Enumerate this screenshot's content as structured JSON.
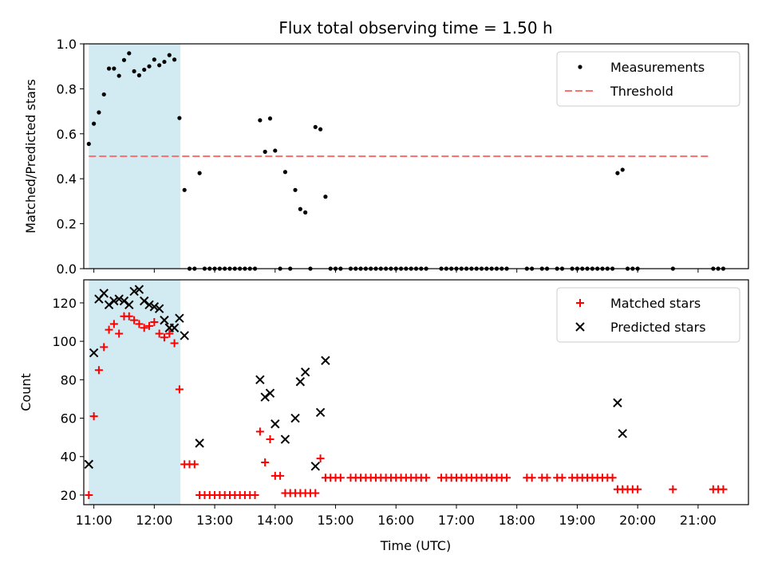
{
  "figure": {
    "title": "Flux total observing time = 1.50 h",
    "xlabel": "Time (UTC)"
  },
  "chart_data": [
    {
      "type": "scatter",
      "ylabel": "Matched/Predicted stars",
      "xlim": [
        "10:50",
        "21:50"
      ],
      "ylim": [
        0,
        1.0
      ],
      "yticks": [
        0,
        0.2,
        0.4,
        0.6,
        0.8,
        1.0
      ],
      "ytick_labels": [
        "0.0",
        "0.2",
        "0.4",
        "0.6",
        "0.8",
        "1.0"
      ],
      "highlight_span": {
        "from": "10:55",
        "to": "12:26",
        "color": "#add8e6"
      },
      "threshold": {
        "name": "Threshold",
        "value": 0.5,
        "from": "10:55",
        "to": "21:10",
        "color": "#ff7070",
        "style": "dashed"
      },
      "legend": {
        "placement": "top-right",
        "entries": [
          "Measurements",
          "Threshold"
        ]
      },
      "series": [
        {
          "name": "Measurements",
          "marker": "dot",
          "color": "#000000",
          "points": [
            [
              "10:55",
              0.555
            ],
            [
              "11:00",
              0.645
            ],
            [
              "11:05",
              0.695
            ],
            [
              "11:10",
              0.775
            ],
            [
              "11:15",
              0.89
            ],
            [
              "11:20",
              0.89
            ],
            [
              "11:25",
              0.858
            ],
            [
              "11:30",
              0.928
            ],
            [
              "11:35",
              0.958
            ],
            [
              "11:40",
              0.878
            ],
            [
              "11:45",
              0.86
            ],
            [
              "11:50",
              0.885
            ],
            [
              "11:55",
              0.9
            ],
            [
              "12:00",
              0.93
            ],
            [
              "12:05",
              0.905
            ],
            [
              "12:10",
              0.92
            ],
            [
              "12:15",
              0.95
            ],
            [
              "12:20",
              0.93
            ],
            [
              "12:25",
              0.67
            ],
            [
              "12:30",
              0.35
            ],
            [
              "12:35",
              0
            ],
            [
              "12:40",
              0
            ],
            [
              "12:45",
              0.425
            ],
            [
              "12:50",
              0
            ],
            [
              "12:55",
              0
            ],
            [
              "13:00",
              0
            ],
            [
              "13:05",
              0
            ],
            [
              "13:10",
              0
            ],
            [
              "13:15",
              0
            ],
            [
              "13:20",
              0
            ],
            [
              "13:25",
              0
            ],
            [
              "13:30",
              0
            ],
            [
              "13:35",
              0
            ],
            [
              "13:40",
              0
            ],
            [
              "13:45",
              0.66
            ],
            [
              "13:50",
              0.52
            ],
            [
              "13:55",
              0.668
            ],
            [
              "14:00",
              0.525
            ],
            [
              "14:05",
              0
            ],
            [
              "14:10",
              0.43
            ],
            [
              "14:15",
              0
            ],
            [
              "14:20",
              0.35
            ],
            [
              "14:25",
              0.265
            ],
            [
              "14:30",
              0.25
            ],
            [
              "14:35",
              0
            ],
            [
              "14:40",
              0.63
            ],
            [
              "14:45",
              0.62
            ],
            [
              "14:50",
              0.32
            ],
            [
              "14:55",
              0
            ],
            [
              "15:00",
              0
            ],
            [
              "15:05",
              0
            ],
            [
              "15:15",
              0
            ],
            [
              "15:20",
              0
            ],
            [
              "15:25",
              0
            ],
            [
              "15:30",
              0
            ],
            [
              "15:35",
              0
            ],
            [
              "15:40",
              0
            ],
            [
              "15:45",
              0
            ],
            [
              "15:50",
              0
            ],
            [
              "15:55",
              0
            ],
            [
              "16:00",
              0
            ],
            [
              "16:05",
              0
            ],
            [
              "16:10",
              0
            ],
            [
              "16:15",
              0
            ],
            [
              "16:20",
              0
            ],
            [
              "16:25",
              0
            ],
            [
              "16:30",
              0
            ],
            [
              "16:45",
              0
            ],
            [
              "16:50",
              0
            ],
            [
              "16:55",
              0
            ],
            [
              "17:00",
              0
            ],
            [
              "17:05",
              0
            ],
            [
              "17:10",
              0
            ],
            [
              "17:15",
              0
            ],
            [
              "17:20",
              0
            ],
            [
              "17:25",
              0
            ],
            [
              "17:30",
              0
            ],
            [
              "17:35",
              0
            ],
            [
              "17:40",
              0
            ],
            [
              "17:45",
              0
            ],
            [
              "17:50",
              0
            ],
            [
              "18:10",
              0
            ],
            [
              "18:15",
              0
            ],
            [
              "18:25",
              0
            ],
            [
              "18:30",
              0
            ],
            [
              "18:40",
              0
            ],
            [
              "18:45",
              0
            ],
            [
              "18:55",
              0
            ],
            [
              "19:00",
              0
            ],
            [
              "19:05",
              0
            ],
            [
              "19:10",
              0
            ],
            [
              "19:15",
              0
            ],
            [
              "19:20",
              0
            ],
            [
              "19:25",
              0
            ],
            [
              "19:30",
              0
            ],
            [
              "19:35",
              0
            ],
            [
              "19:40",
              0.425
            ],
            [
              "19:45",
              0.44
            ],
            [
              "19:50",
              0
            ],
            [
              "19:55",
              0
            ],
            [
              "20:00",
              0
            ],
            [
              "20:35",
              0
            ],
            [
              "21:15",
              0
            ],
            [
              "21:20",
              0
            ],
            [
              "21:25",
              0
            ]
          ]
        }
      ]
    },
    {
      "type": "scatter",
      "ylabel": "Count",
      "xlim": [
        "10:50",
        "21:50"
      ],
      "ylim": [
        15,
        132
      ],
      "yticks": [
        20,
        40,
        60,
        80,
        100,
        120
      ],
      "ytick_labels": [
        "20",
        "40",
        "60",
        "80",
        "100",
        "120"
      ],
      "xticks": [
        "11:00",
        "12:00",
        "13:00",
        "14:00",
        "15:00",
        "16:00",
        "17:00",
        "18:00",
        "19:00",
        "20:00",
        "21:00"
      ],
      "highlight_span": {
        "from": "10:55",
        "to": "12:26",
        "color": "#add8e6"
      },
      "legend": {
        "placement": "top-right",
        "entries": [
          "Matched stars",
          "Predicted stars"
        ]
      },
      "series": [
        {
          "name": "Matched stars",
          "marker": "plus",
          "color": "#ff0000",
          "points": [
            [
              "10:55",
              20
            ],
            [
              "11:00",
              61
            ],
            [
              "11:05",
              85
            ],
            [
              "11:10",
              97
            ],
            [
              "11:15",
              106
            ],
            [
              "11:20",
              109
            ],
            [
              "11:25",
              104
            ],
            [
              "11:30",
              113
            ],
            [
              "11:35",
              113
            ],
            [
              "11:40",
              111
            ],
            [
              "11:45",
              109
            ],
            [
              "11:50",
              107
            ],
            [
              "11:55",
              108
            ],
            [
              "12:00",
              110
            ],
            [
              "12:05",
              104
            ],
            [
              "12:10",
              102
            ],
            [
              "12:15",
              104
            ],
            [
              "12:20",
              99
            ],
            [
              "12:25",
              75
            ],
            [
              "12:30",
              36
            ],
            [
              "12:35",
              36
            ],
            [
              "12:40",
              36
            ],
            [
              "12:45",
              20
            ],
            [
              "12:50",
              20
            ],
            [
              "12:55",
              20
            ],
            [
              "13:00",
              20
            ],
            [
              "13:05",
              20
            ],
            [
              "13:10",
              20
            ],
            [
              "13:15",
              20
            ],
            [
              "13:20",
              20
            ],
            [
              "13:25",
              20
            ],
            [
              "13:30",
              20
            ],
            [
              "13:35",
              20
            ],
            [
              "13:40",
              20
            ],
            [
              "13:45",
              53
            ],
            [
              "13:50",
              37
            ],
            [
              "13:55",
              49
            ],
            [
              "14:00",
              30
            ],
            [
              "14:05",
              30
            ],
            [
              "14:10",
              21
            ],
            [
              "14:15",
              21
            ],
            [
              "14:20",
              21
            ],
            [
              "14:25",
              21
            ],
            [
              "14:30",
              21
            ],
            [
              "14:35",
              21
            ],
            [
              "14:40",
              21
            ],
            [
              "14:45",
              39
            ],
            [
              "14:50",
              29
            ],
            [
              "14:55",
              29
            ],
            [
              "15:00",
              29
            ],
            [
              "15:05",
              29
            ],
            [
              "15:15",
              29
            ],
            [
              "15:20",
              29
            ],
            [
              "15:25",
              29
            ],
            [
              "15:30",
              29
            ],
            [
              "15:35",
              29
            ],
            [
              "15:40",
              29
            ],
            [
              "15:45",
              29
            ],
            [
              "15:50",
              29
            ],
            [
              "15:55",
              29
            ],
            [
              "16:00",
              29
            ],
            [
              "16:05",
              29
            ],
            [
              "16:10",
              29
            ],
            [
              "16:15",
              29
            ],
            [
              "16:20",
              29
            ],
            [
              "16:25",
              29
            ],
            [
              "16:30",
              29
            ],
            [
              "16:45",
              29
            ],
            [
              "16:50",
              29
            ],
            [
              "16:55",
              29
            ],
            [
              "17:00",
              29
            ],
            [
              "17:05",
              29
            ],
            [
              "17:10",
              29
            ],
            [
              "17:15",
              29
            ],
            [
              "17:20",
              29
            ],
            [
              "17:25",
              29
            ],
            [
              "17:30",
              29
            ],
            [
              "17:35",
              29
            ],
            [
              "17:40",
              29
            ],
            [
              "17:45",
              29
            ],
            [
              "17:50",
              29
            ],
            [
              "18:10",
              29
            ],
            [
              "18:15",
              29
            ],
            [
              "18:25",
              29
            ],
            [
              "18:30",
              29
            ],
            [
              "18:40",
              29
            ],
            [
              "18:45",
              29
            ],
            [
              "18:55",
              29
            ],
            [
              "19:00",
              29
            ],
            [
              "19:05",
              29
            ],
            [
              "19:10",
              29
            ],
            [
              "19:15",
              29
            ],
            [
              "19:20",
              29
            ],
            [
              "19:25",
              29
            ],
            [
              "19:30",
              29
            ],
            [
              "19:35",
              29
            ],
            [
              "19:40",
              23
            ],
            [
              "19:45",
              23
            ],
            [
              "19:50",
              23
            ],
            [
              "19:55",
              23
            ],
            [
              "20:00",
              23
            ],
            [
              "20:35",
              23
            ],
            [
              "21:15",
              23
            ],
            [
              "21:20",
              23
            ],
            [
              "21:25",
              23
            ]
          ]
        },
        {
          "name": "Predicted stars",
          "marker": "x",
          "color": "#000000",
          "points": [
            [
              "10:55",
              36
            ],
            [
              "11:00",
              94
            ],
            [
              "11:05",
              122
            ],
            [
              "11:10",
              125
            ],
            [
              "11:15",
              119
            ],
            [
              "11:20",
              121
            ],
            [
              "11:25",
              122
            ],
            [
              "11:30",
              121
            ],
            [
              "11:35",
              119
            ],
            [
              "11:40",
              126
            ],
            [
              "11:45",
              127
            ],
            [
              "11:50",
              121
            ],
            [
              "11:55",
              119
            ],
            [
              "12:00",
              118
            ],
            [
              "12:05",
              117
            ],
            [
              "12:10",
              111
            ],
            [
              "12:15",
              107
            ],
            [
              "12:20",
              107
            ],
            [
              "12:25",
              112
            ],
            [
              "12:30",
              103
            ],
            [
              "12:45",
              47
            ],
            [
              "13:45",
              80
            ],
            [
              "13:50",
              71
            ],
            [
              "13:55",
              73
            ],
            [
              "14:00",
              57
            ],
            [
              "14:10",
              49
            ],
            [
              "14:20",
              60
            ],
            [
              "14:25",
              79
            ],
            [
              "14:30",
              84
            ],
            [
              "14:40",
              35
            ],
            [
              "14:45",
              63
            ],
            [
              "14:50",
              90
            ],
            [
              "19:40",
              68
            ],
            [
              "19:45",
              52
            ]
          ]
        }
      ]
    }
  ]
}
